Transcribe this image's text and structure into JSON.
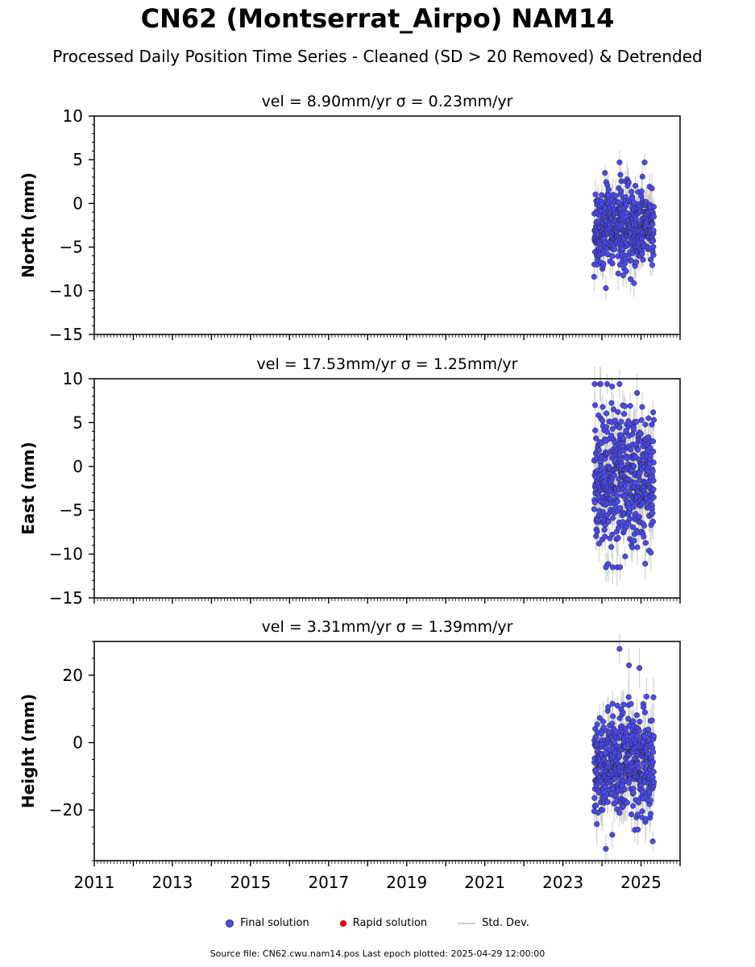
{
  "title": "CN62 (Montserrat_Airpo) NAM14",
  "subtitle": "Processed Daily Position Time Series - Cleaned (SD > 20 Removed) & Detrended",
  "legend": {
    "final": "Final solution",
    "rapid": "Rapid solution",
    "std": "Std. Dev."
  },
  "footer": "Source file: CN62.cwu.nam14.pos  Last epoch plotted: 2025-04-29 12:00:00",
  "colors": {
    "final": "#4a4aef",
    "rapid": "#e00000",
    "std": "#c8c8c8"
  },
  "chart_data": [
    {
      "type": "scatter",
      "title": "vel = 8.90mm/yr   σ = 0.23mm/yr",
      "ylabel": "North (mm)",
      "xlim": [
        2011.0,
        2026.0
      ],
      "ylim": [
        -15,
        10
      ],
      "yticks": [
        10,
        5,
        0,
        -5,
        -10,
        -15
      ],
      "xticks": [],
      "data_range_years": [
        2023.8,
        2025.33
      ],
      "y_center": -2.6,
      "y_spread": 2.1,
      "y_min": -9.7,
      "y_max": 4.7,
      "sd_typical": 1.4,
      "grid": false
    },
    {
      "type": "scatter",
      "title": "vel = 17.53mm/yr   σ = 1.25mm/yr",
      "ylabel": "East (mm)",
      "xlim": [
        2011.0,
        2026.0
      ],
      "ylim": [
        -15,
        10
      ],
      "yticks": [
        10,
        5,
        0,
        -5,
        -10,
        -15
      ],
      "xticks": [],
      "data_range_years": [
        2023.8,
        2025.33
      ],
      "y_center": -1.2,
      "y_spread": 3.9,
      "y_min": -11.5,
      "y_max": 9.4,
      "sd_typical": 1.6,
      "grid": false
    },
    {
      "type": "scatter",
      "title": "vel = 3.31mm/yr   σ = 1.39mm/yr",
      "ylabel": "Height (mm)",
      "xlim": [
        2011.0,
        2026.0
      ],
      "ylim": [
        -35,
        30
      ],
      "yticks": [
        20,
        0,
        -20
      ],
      "xticks": [
        "2011",
        "2013",
        "2015",
        "2017",
        "2019",
        "2021",
        "2023",
        "2025"
      ],
      "data_range_years": [
        2023.8,
        2025.33
      ],
      "y_center": -6.5,
      "y_spread": 7.5,
      "y_min": -31.5,
      "y_max": 27.8,
      "sd_typical": 4.5,
      "grid": false
    }
  ]
}
